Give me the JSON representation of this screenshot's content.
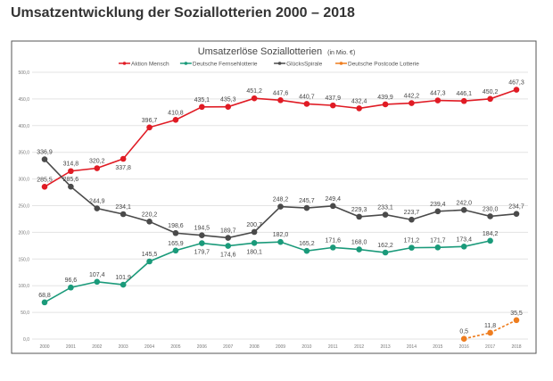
{
  "page_title": "Umsatzentwicklung der Soziallotterien 2000 – 2018",
  "chart_data": {
    "type": "line",
    "title": "Umsatzerlöse Soziallotterien",
    "unit": "(in Mio. €)",
    "xlabel": "",
    "ylabel": "",
    "ylim": [
      0,
      500
    ],
    "yticks": [
      "0,0",
      "50,0",
      "100,0",
      "150,0",
      "200,0",
      "250,0",
      "300,0",
      "350,0",
      "400,0",
      "450,0",
      "500,0"
    ],
    "x": [
      "2000",
      "2001",
      "2002",
      "2003",
      "2004",
      "2005",
      "2006",
      "2007",
      "2008",
      "2009",
      "2010",
      "2011",
      "2012",
      "2013",
      "2014",
      "2015",
      "2016",
      "2017",
      "2018"
    ],
    "grid": true,
    "legend": "top",
    "series": [
      {
        "name": "Aktion Mensch",
        "color": "#e01b24",
        "values": [
          285.5,
          314.8,
          320.2,
          337.8,
          396.7,
          410.8,
          435.1,
          435.3,
          451.2,
          447.6,
          440.7,
          437.9,
          432.4,
          439.9,
          442.2,
          447.3,
          446.1,
          450.2,
          467.3
        ],
        "labels": [
          "285,5",
          "314,8",
          "320,2",
          "337,8",
          "396,7",
          "410,8",
          "435,1",
          "435,3",
          "451,2",
          "447,6",
          "440,7",
          "437,9",
          "432,4",
          "439,9",
          "442,2",
          "447,3",
          "446,1",
          "450,2",
          "467,3"
        ]
      },
      {
        "name": "Deutsche Fernsehlotterie",
        "color": "#1a9a7a",
        "values": [
          68.8,
          96.6,
          107.4,
          101.9,
          145.5,
          165.9,
          179.7,
          174.6,
          180.1,
          182.0,
          165.2,
          171.6,
          168.0,
          162.2,
          171.2,
          171.7,
          173.4,
          184.2,
          null
        ],
        "labels": [
          "68,8",
          "96,6",
          "107,4",
          "101,9",
          "145,5",
          "165,9",
          "179,7",
          "174,6",
          "180,1",
          "182,0",
          "165,2",
          "171,6",
          "168,0",
          "162,2",
          "171,2",
          "171,7",
          "173,4",
          "184,2",
          null
        ]
      },
      {
        "name": "GlücksSpirale",
        "color": "#4a4a4a",
        "values": [
          336.9,
          285.6,
          244.9,
          234.1,
          220.2,
          198.6,
          194.5,
          189.7,
          200.7,
          248.2,
          245.7,
          249.4,
          229.3,
          233.1,
          223.7,
          239.4,
          242.0,
          230.0,
          234.7
        ],
        "labels": [
          "336,9",
          "285,6",
          "244,9",
          "234,1",
          "220,2",
          "198,6",
          "194,5",
          "189,7",
          "200,7",
          "248,2",
          "245,7",
          "249,4",
          "229,3",
          "233,1",
          "223,7",
          "239,4",
          "242,0",
          "230,0",
          "234,7"
        ]
      },
      {
        "name": "Deutsche Postcode Lotterie",
        "color": "#ee7d1f",
        "values": [
          null,
          null,
          null,
          null,
          null,
          null,
          null,
          null,
          null,
          null,
          null,
          null,
          null,
          null,
          null,
          null,
          0.5,
          11.8,
          35.5
        ],
        "labels": [
          null,
          null,
          null,
          null,
          null,
          null,
          null,
          null,
          null,
          null,
          null,
          null,
          null,
          null,
          null,
          null,
          "0,5",
          "11,8",
          "35,5"
        ]
      }
    ]
  }
}
